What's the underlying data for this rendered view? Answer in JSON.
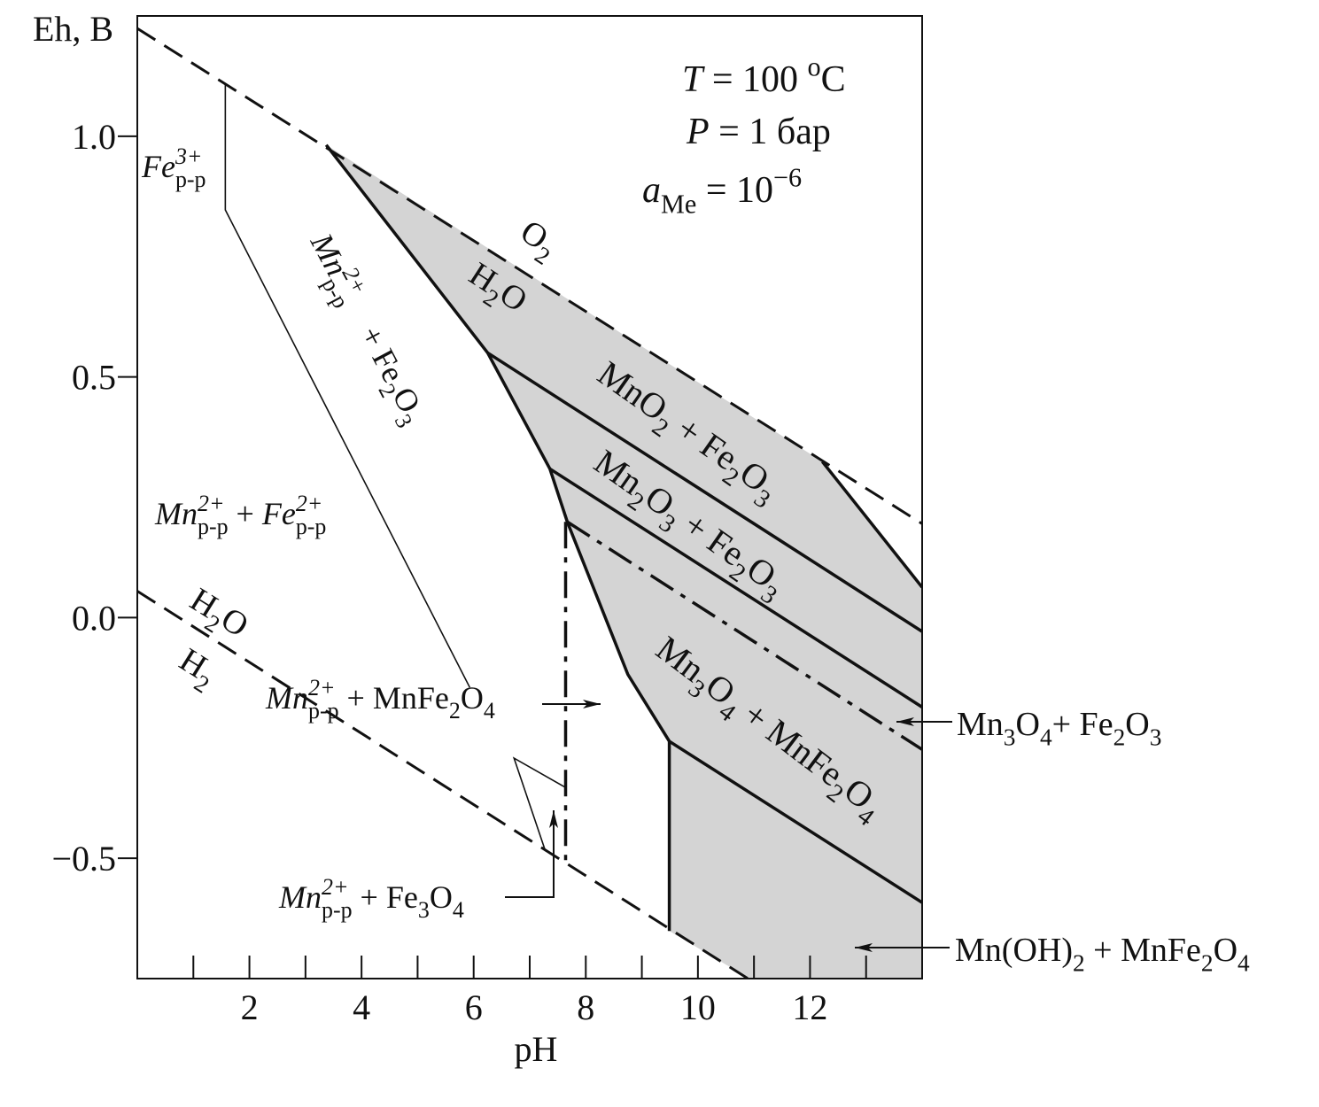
{
  "chart_data": {
    "type": "phase_diagram",
    "xlabel": "pH",
    "ylabel": "Eh, В",
    "xlim": [
      0,
      14
    ],
    "ylim": [
      -0.75,
      1.25
    ],
    "xticks": [
      2,
      4,
      6,
      8,
      10,
      12
    ],
    "xminorticks": [
      1,
      3,
      5,
      7,
      9,
      11,
      13
    ],
    "yticks": [
      {
        "value": 1,
        "label": "1.0"
      },
      0.5,
      {
        "value": 0,
        "label": "0.0"
      },
      {
        "value": -0.5,
        "label": "−0.5"
      }
    ],
    "region_color": "#d4d4d4",
    "regions": [
      {
        "x": [
          3.37,
          12.22,
          14,
          14,
          10.92,
          9.49,
          9.49,
          8.75,
          7.67,
          7.36,
          6.25
        ],
        "y": [
          0.982,
          0.324,
          0.063,
          -0.75,
          -0.75,
          -0.651,
          -0.257,
          -0.118,
          0.199,
          0.309,
          0.55
        ]
      }
    ],
    "lines": [
      {
        "style": "dashed",
        "x": [
          0,
          14
        ],
        "y": [
          1.224,
          0.195
        ]
      },
      {
        "style": "dashed",
        "x": [
          0,
          10.92
        ],
        "y": [
          0.055,
          -0.752
        ]
      },
      {
        "style": "thin",
        "x": [
          1.57,
          1.57,
          5.93
        ],
        "y": [
          1.108,
          0.847,
          -0.145
        ]
      },
      {
        "style": "thin",
        "x": [
          7.64,
          6.72,
          7.28
        ],
        "y": [
          -0.353,
          -0.292,
          -0.485
        ]
      },
      {
        "style": "solid",
        "x": [
          3.37,
          6.25,
          7.36,
          7.67,
          8.75,
          9.49,
          9.49
        ],
        "y": [
          0.982,
          0.55,
          0.309,
          0.199,
          -0.118,
          -0.257,
          -0.651
        ]
      },
      {
        "style": "solid",
        "x": [
          6.25,
          14
        ],
        "y": [
          0.55,
          -0.029
        ]
      },
      {
        "style": "solid",
        "x": [
          7.36,
          14
        ],
        "y": [
          0.309,
          -0.186
        ]
      },
      {
        "style": "solid",
        "x": [
          9.49,
          14
        ],
        "y": [
          -0.257,
          -0.592
        ]
      },
      {
        "style": "solid",
        "x": [
          12.22,
          14
        ],
        "y": [
          0.324,
          0.063
        ]
      },
      {
        "style": "dash-dot",
        "x": [
          7.67,
          14
        ],
        "y": [
          0.199,
          -0.274
        ]
      },
      {
        "style": "dash-dot",
        "x": [
          7.64,
          7.64
        ],
        "y": [
          0.199,
          -0.504
        ]
      }
    ],
    "labels": [
      {
        "parts": [
          {
            "text": "T",
            "italic": true
          },
          {
            "text": " = 100 "
          },
          {
            "text": "o",
            "pos": "sup"
          },
          {
            "text": "C"
          }
        ]
      },
      {
        "parts": [
          {
            "text": "P",
            "italic": true
          },
          {
            "text": " = 1 бар"
          }
        ]
      },
      {
        "parts": [
          {
            "text": "a",
            "italic": true
          },
          {
            "text": "Me",
            "pos": "sub"
          },
          {
            "text": " = 10"
          },
          {
            "text": "−6",
            "pos": "sup"
          }
        ]
      },
      {
        "parts": [
          {
            "text": "Fe",
            "italic": true
          },
          {
            "text": "3+",
            "pos": "sup",
            "italic": true
          },
          {
            "text": "р-р",
            "pos": "sub",
            "stack": true
          }
        ]
      },
      {
        "parts": [
          {
            "text": "Mn",
            "italic": true
          },
          {
            "text": "2+",
            "pos": "sup",
            "italic": true
          },
          {
            "text": "р-р",
            "pos": "sub",
            "stack": true
          },
          {
            "text": "    + Fe"
          },
          {
            "text": "2",
            "pos": "sub"
          },
          {
            "text": "O"
          },
          {
            "text": "3",
            "pos": "sub"
          }
        ]
      },
      {
        "parts": [
          {
            "text": "O"
          },
          {
            "text": "2",
            "pos": "sub"
          }
        ]
      },
      {
        "parts": [
          {
            "text": "H"
          },
          {
            "text": "2",
            "pos": "sub"
          },
          {
            "text": "O"
          }
        ]
      },
      {
        "parts": [
          {
            "text": "MnO"
          },
          {
            "text": "2",
            "pos": "sub"
          },
          {
            "text": " + Fe"
          },
          {
            "text": "2",
            "pos": "sub"
          },
          {
            "text": "O"
          },
          {
            "text": "3",
            "pos": "sub"
          }
        ]
      },
      {
        "parts": [
          {
            "text": "Mn"
          },
          {
            "text": "2",
            "pos": "sub"
          },
          {
            "text": "O"
          },
          {
            "text": "3",
            "pos": "sub"
          },
          {
            "text": " + Fe"
          },
          {
            "text": "2",
            "pos": "sub"
          },
          {
            "text": "O"
          },
          {
            "text": "3",
            "pos": "sub"
          }
        ]
      },
      {
        "parts": [
          {
            "text": "Mn"
          },
          {
            "text": "3",
            "pos": "sub"
          },
          {
            "text": "O"
          },
          {
            "text": "4",
            "pos": "sub"
          },
          {
            "text": " + MnFe"
          },
          {
            "text": "2",
            "pos": "sub"
          },
          {
            "text": "O"
          },
          {
            "text": "4",
            "pos": "sub"
          }
        ]
      },
      {
        "parts": [
          {
            "text": "Mn",
            "italic": true
          },
          {
            "text": "2+",
            "pos": "sup",
            "italic": true
          },
          {
            "text": "р-р",
            "pos": "sub",
            "stack": true
          },
          {
            "text": " + "
          },
          {
            "text": "Fe",
            "italic": true
          },
          {
            "text": "2+",
            "pos": "sup",
            "italic": true
          },
          {
            "text": "р-р",
            "pos": "sub",
            "stack": true
          }
        ]
      },
      {
        "parts": [
          {
            "text": "H"
          },
          {
            "text": "2",
            "pos": "sub"
          },
          {
            "text": "O"
          }
        ]
      },
      {
        "parts": [
          {
            "text": "H"
          },
          {
            "text": "2",
            "pos": "sub"
          }
        ]
      },
      {
        "parts": [
          {
            "text": "Mn",
            "italic": true
          },
          {
            "text": "2+",
            "pos": "sup",
            "italic": true
          },
          {
            "text": "р-р",
            "pos": "sub",
            "stack": true
          },
          {
            "text": " + MnFe"
          },
          {
            "text": "2",
            "pos": "sub"
          },
          {
            "text": "O"
          },
          {
            "text": "4",
            "pos": "sub"
          }
        ]
      },
      {
        "parts": [
          {
            "text": "Mn",
            "italic": true
          },
          {
            "text": "2+",
            "pos": "sup",
            "italic": true
          },
          {
            "text": "р-р",
            "pos": "sub",
            "stack": true
          },
          {
            "text": " + Fe"
          },
          {
            "text": "3",
            "pos": "sub"
          },
          {
            "text": "O"
          },
          {
            "text": "4",
            "pos": "sub"
          }
        ]
      },
      {
        "parts": [
          {
            "text": "Mn"
          },
          {
            "text": "3",
            "pos": "sub"
          },
          {
            "text": "O"
          },
          {
            "text": "4",
            "pos": "sub"
          },
          {
            "text": "+ Fe"
          },
          {
            "text": "2",
            "pos": "sub"
          },
          {
            "text": "O"
          },
          {
            "text": "3",
            "pos": "sub"
          }
        ]
      },
      {
        "parts": [
          {
            "text": "Mn(OH)"
          },
          {
            "text": "2",
            "pos": "sub"
          },
          {
            "text": " + MnFe"
          },
          {
            "text": "2",
            "pos": "sub"
          },
          {
            "text": "O"
          },
          {
            "text": "4",
            "pos": "sub"
          }
        ]
      }
    ]
  }
}
